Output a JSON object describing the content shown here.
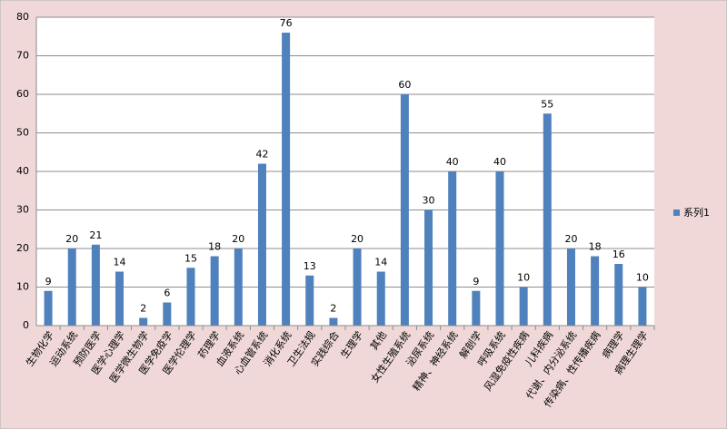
{
  "chart_data": {
    "type": "bar",
    "categories": [
      "生物化学",
      "运动系统",
      "预防医学",
      "医学心理学",
      "医学微生物学",
      "医学免疫学",
      "医学伦理学",
      "药理学",
      "血液系统",
      "心血管系统",
      "消化系统",
      "卫生法规",
      "实践综合",
      "生理学",
      "其他",
      "女性生殖系统",
      "泌尿系统",
      "精神、神经系统",
      "解剖学",
      "呼吸系统",
      "风湿免疫性疾病",
      "儿科疾病",
      "代谢、内分泌系统",
      "传染病、性传播疾病",
      "病理学",
      "病理生理学"
    ],
    "series": [
      {
        "name": "系列1",
        "color": "#4f81bd",
        "values": [
          9,
          20,
          21,
          14,
          2,
          6,
          15,
          18,
          20,
          42,
          76,
          13,
          2,
          20,
          14,
          60,
          30,
          40,
          9,
          40,
          10,
          55,
          20,
          18,
          16,
          10
        ]
      }
    ],
    "ylim": [
      0,
      80
    ],
    "yticks": [
      0,
      10,
      20,
      30,
      40,
      50,
      60,
      70,
      80
    ],
    "grid": true,
    "legend": "right"
  }
}
